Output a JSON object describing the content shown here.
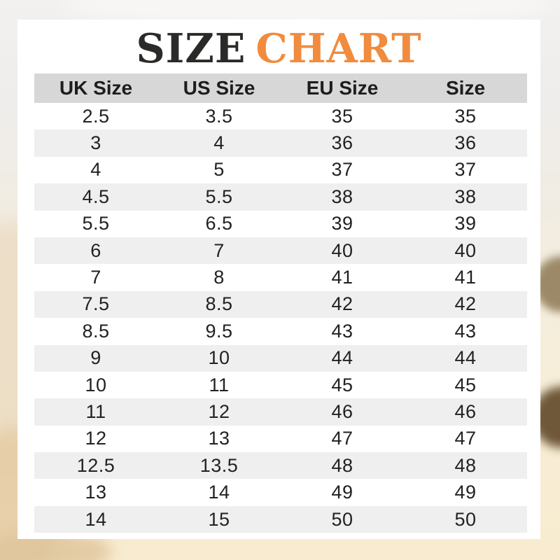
{
  "title": {
    "part1": "SIZE",
    "part2": "CHART"
  },
  "colors": {
    "title_dark": "#2b2a28",
    "title_accent": "#f18b3e",
    "header_bg": "#d7d7d7",
    "stripe_bg": "#efefef",
    "row_bg": "#ffffff",
    "cell_text": "#222222",
    "card_bg": "#ffffff"
  },
  "chart_data": {
    "type": "table",
    "title": "SIZE CHART",
    "columns": [
      "UK Size",
      "US Size",
      "EU Size",
      "Size"
    ],
    "rows": [
      [
        "2.5",
        "3.5",
        "35",
        "35"
      ],
      [
        "3",
        "4",
        "36",
        "36"
      ],
      [
        "4",
        "5",
        "37",
        "37"
      ],
      [
        "4.5",
        "5.5",
        "38",
        "38"
      ],
      [
        "5.5",
        "6.5",
        "39",
        "39"
      ],
      [
        "6",
        "7",
        "40",
        "40"
      ],
      [
        "7",
        "8",
        "41",
        "41"
      ],
      [
        "7.5",
        "8.5",
        "42",
        "42"
      ],
      [
        "8.5",
        "9.5",
        "43",
        "43"
      ],
      [
        "9",
        "10",
        "44",
        "44"
      ],
      [
        "10",
        "11",
        "45",
        "45"
      ],
      [
        "11",
        "12",
        "46",
        "46"
      ],
      [
        "12",
        "13",
        "47",
        "47"
      ],
      [
        "12.5",
        "13.5",
        "48",
        "48"
      ],
      [
        "13",
        "14",
        "49",
        "49"
      ],
      [
        "14",
        "15",
        "50",
        "50"
      ]
    ],
    "layout": {
      "grid": false,
      "row_striping": "alternating white/gray",
      "header_background": "gray"
    }
  }
}
